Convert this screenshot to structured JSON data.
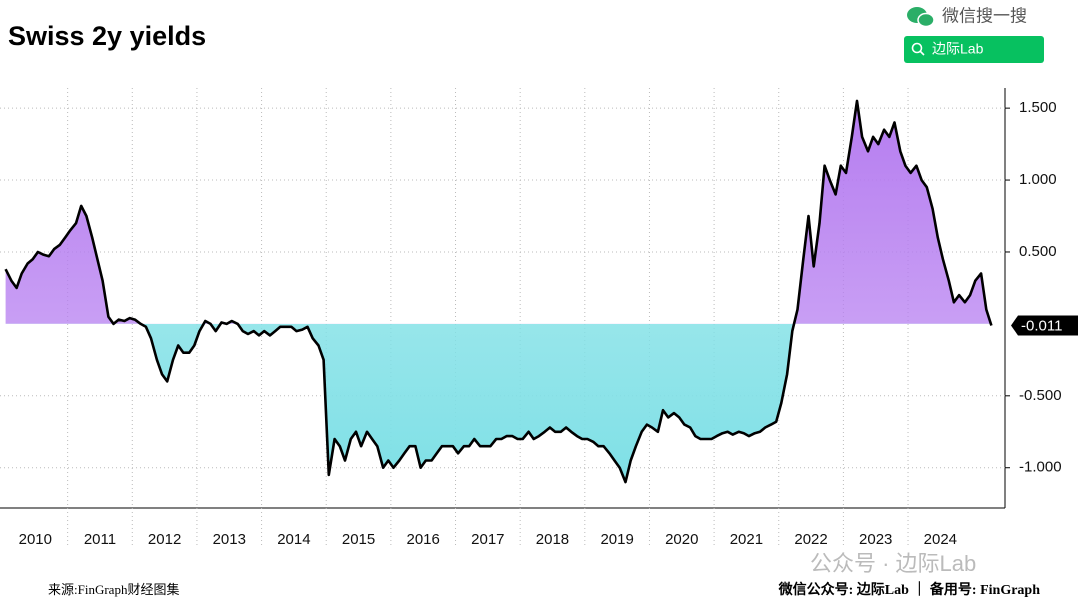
{
  "chart_data": {
    "type": "line",
    "title": "Swiss 2y yields",
    "xlim": [
      2010,
      2025.5
    ],
    "ylim": [
      -1.28,
      1.64
    ],
    "xticks": [
      2010,
      2011,
      2012,
      2013,
      2014,
      2015,
      2016,
      2017,
      2018,
      2019,
      2020,
      2021,
      2022,
      2023,
      2024
    ],
    "yticks": [
      {
        "value": -1,
        "label": "-1.000"
      },
      {
        "value": -0.5,
        "label": "-0.500"
      },
      {
        "value": 0.5,
        "label": "0.500"
      },
      {
        "value": 1,
        "label": "1.000"
      },
      {
        "value": 1.5,
        "label": "1.500"
      }
    ],
    "grid": true,
    "positive_color": "#b57cf0",
    "negative_color": "#7fe0e6",
    "series": [
      {
        "name": "Swiss 2y",
        "color": "#000000",
        "x": [
          2010.04,
          2010.13,
          2010.21,
          2010.29,
          2010.38,
          2010.46,
          2010.54,
          2010.63,
          2010.71,
          2010.79,
          2010.88,
          2010.96,
          2011.04,
          2011.13,
          2011.21,
          2011.29,
          2011.38,
          2011.46,
          2011.54,
          2011.63,
          2011.71,
          2011.79,
          2011.88,
          2011.96,
          2012.04,
          2012.13,
          2012.21,
          2012.29,
          2012.38,
          2012.46,
          2012.54,
          2012.63,
          2012.71,
          2012.79,
          2012.88,
          2012.96,
          2013.04,
          2013.13,
          2013.21,
          2013.29,
          2013.38,
          2013.46,
          2013.54,
          2013.63,
          2013.71,
          2013.79,
          2013.88,
          2013.96,
          2014.04,
          2014.13,
          2014.21,
          2014.29,
          2014.38,
          2014.46,
          2014.54,
          2014.63,
          2014.71,
          2014.79,
          2014.88,
          2014.96,
          2015.04,
          2015.13,
          2015.21,
          2015.29,
          2015.38,
          2015.46,
          2015.54,
          2015.63,
          2015.71,
          2015.79,
          2015.88,
          2015.96,
          2016.04,
          2016.13,
          2016.21,
          2016.29,
          2016.38,
          2016.46,
          2016.54,
          2016.63,
          2016.71,
          2016.79,
          2016.88,
          2016.96,
          2017.04,
          2017.13,
          2017.21,
          2017.29,
          2017.38,
          2017.46,
          2017.54,
          2017.63,
          2017.71,
          2017.79,
          2017.88,
          2017.96,
          2018.04,
          2018.13,
          2018.21,
          2018.29,
          2018.38,
          2018.46,
          2018.54,
          2018.63,
          2018.71,
          2018.79,
          2018.88,
          2018.96,
          2019.04,
          2019.13,
          2019.21,
          2019.29,
          2019.38,
          2019.46,
          2019.54,
          2019.63,
          2019.71,
          2019.79,
          2019.88,
          2019.96,
          2020.04,
          2020.13,
          2020.21,
          2020.29,
          2020.38,
          2020.46,
          2020.54,
          2020.63,
          2020.71,
          2020.79,
          2020.88,
          2020.96,
          2021.04,
          2021.13,
          2021.21,
          2021.29,
          2021.38,
          2021.46,
          2021.54,
          2021.63,
          2021.71,
          2021.79,
          2021.88,
          2021.96,
          2022.04,
          2022.13,
          2022.21,
          2022.29,
          2022.38,
          2022.46,
          2022.54,
          2022.63,
          2022.71,
          2022.79,
          2022.88,
          2022.96,
          2023.04,
          2023.13,
          2023.21,
          2023.29,
          2023.38,
          2023.46,
          2023.54,
          2023.63,
          2023.71,
          2023.79,
          2023.88,
          2023.96,
          2024.04,
          2024.13,
          2024.21,
          2024.29,
          2024.38,
          2024.46,
          2024.54,
          2024.63,
          2024.71,
          2024.79,
          2024.88,
          2024.96,
          2025.04,
          2025.13,
          2025.21,
          2025.29
        ],
        "values": [
          0.38,
          0.3,
          0.25,
          0.35,
          0.42,
          0.45,
          0.5,
          0.48,
          0.47,
          0.52,
          0.55,
          0.6,
          0.65,
          0.7,
          0.82,
          0.75,
          0.6,
          0.45,
          0.3,
          0.05,
          0.0,
          0.03,
          0.02,
          0.04,
          0.03,
          0.0,
          -0.02,
          -0.1,
          -0.25,
          -0.35,
          -0.4,
          -0.25,
          -0.15,
          -0.2,
          -0.2,
          -0.15,
          -0.05,
          0.02,
          0.0,
          -0.05,
          0.01,
          0.0,
          0.02,
          0.0,
          -0.05,
          -0.07,
          -0.05,
          -0.08,
          -0.05,
          -0.08,
          -0.05,
          -0.02,
          -0.02,
          -0.02,
          -0.05,
          -0.04,
          -0.02,
          -0.1,
          -0.15,
          -0.25,
          -1.05,
          -0.8,
          -0.85,
          -0.95,
          -0.8,
          -0.75,
          -0.85,
          -0.75,
          -0.8,
          -0.85,
          -1.0,
          -0.95,
          -1.0,
          -0.95,
          -0.9,
          -0.85,
          -0.85,
          -1.0,
          -0.95,
          -0.95,
          -0.9,
          -0.85,
          -0.85,
          -0.85,
          -0.9,
          -0.85,
          -0.85,
          -0.8,
          -0.85,
          -0.85,
          -0.85,
          -0.8,
          -0.8,
          -0.78,
          -0.78,
          -0.8,
          -0.8,
          -0.75,
          -0.8,
          -0.78,
          -0.75,
          -0.72,
          -0.75,
          -0.75,
          -0.72,
          -0.75,
          -0.78,
          -0.8,
          -0.8,
          -0.82,
          -0.85,
          -0.85,
          -0.9,
          -0.95,
          -1.0,
          -1.1,
          -0.95,
          -0.85,
          -0.75,
          -0.7,
          -0.72,
          -0.75,
          -0.6,
          -0.65,
          -0.62,
          -0.65,
          -0.7,
          -0.72,
          -0.78,
          -0.8,
          -0.8,
          -0.8,
          -0.78,
          -0.76,
          -0.75,
          -0.77,
          -0.75,
          -0.76,
          -0.78,
          -0.76,
          -0.75,
          -0.72,
          -0.7,
          -0.68,
          -0.55,
          -0.35,
          -0.05,
          0.1,
          0.45,
          0.75,
          0.4,
          0.7,
          1.1,
          1.0,
          0.9,
          1.1,
          1.05,
          1.3,
          1.55,
          1.3,
          1.2,
          1.3,
          1.25,
          1.35,
          1.3,
          1.4,
          1.2,
          1.1,
          1.05,
          1.1,
          1.0,
          0.95,
          0.8,
          0.6,
          0.45,
          0.3,
          0.15,
          0.2,
          0.15,
          0.2,
          0.3,
          0.35,
          0.1,
          -0.011
        ]
      }
    ]
  },
  "watermark": {
    "search": "微信搜一搜",
    "button": "边际Lab",
    "account": "公众号 · 边际Lab"
  },
  "footer": {
    "source": "来源:FinGraph财经图集",
    "note": "微信公众号: 边际Lab ｜ 备用号: FinGraph"
  }
}
